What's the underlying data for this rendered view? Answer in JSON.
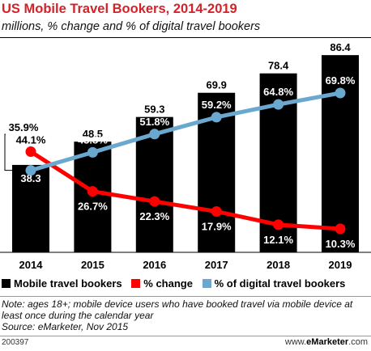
{
  "header": {
    "title": "US Mobile Travel Bookers, 2014-2019",
    "subtitle": "millions, % change and % of digital travel bookers"
  },
  "chart_data": {
    "type": "bar+line",
    "categories": [
      "2014",
      "2015",
      "2016",
      "2017",
      "2018",
      "2019"
    ],
    "bars": {
      "name": "Mobile travel bookers",
      "values": [
        38.3,
        48.5,
        59.3,
        69.9,
        78.4,
        86.4
      ],
      "labels": [
        "38.3",
        "48.5",
        "59.3",
        "69.9",
        "78.4",
        "86.4"
      ],
      "color": "#000000"
    },
    "lines": [
      {
        "name": "% change",
        "values": [
          44.1,
          26.7,
          22.3,
          17.9,
          12.1,
          10.3
        ],
        "labels": [
          "44.1%",
          "26.7%",
          "22.3%",
          "17.9%",
          "12.1%",
          "10.3%"
        ],
        "color": "#ff0000"
      },
      {
        "name": "% of digital travel bookers",
        "values": [
          35.9,
          43.8,
          51.8,
          59.2,
          64.8,
          69.8
        ],
        "labels": [
          "35.9%",
          "43.8%",
          "51.8%",
          "59.2%",
          "64.8%",
          "69.8%"
        ],
        "color": "#6ba8cf"
      }
    ],
    "bar_ylim": [
      0,
      90
    ],
    "line_ylim": [
      0,
      90
    ]
  },
  "legend": {
    "items": [
      {
        "label": "Mobile travel bookers",
        "color": "#000000"
      },
      {
        "label": "% change",
        "color": "#ff0000"
      },
      {
        "label": "% of digital travel bookers",
        "color": "#6ba8cf"
      }
    ]
  },
  "notes": {
    "note": "Note: ages 18+; mobile device users who have booked travel via mobile device at least once during the calendar year",
    "source": "Source: eMarketer, Nov 2015"
  },
  "footer": {
    "id": "200397",
    "site_prefix": "www.",
    "site_brand": "eMarketer",
    "site_suffix": ".com"
  }
}
